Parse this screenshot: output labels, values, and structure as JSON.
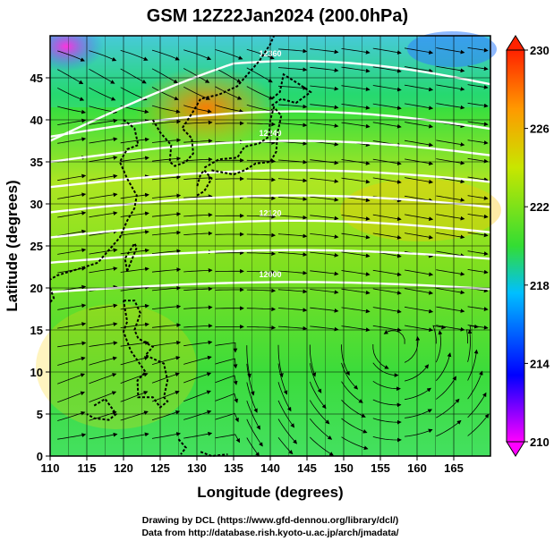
{
  "title": "GSM 12Z22Jan2024 (200.0hPa)",
  "x_axis": {
    "label": "Longitude (degrees)",
    "ticks": [
      "110",
      "115",
      "120",
      "125",
      "130",
      "135",
      "140",
      "145",
      "150",
      "155",
      "160",
      "165"
    ]
  },
  "y_axis": {
    "label": "Latitude  (degrees)",
    "ticks": [
      "0",
      "5",
      "10",
      "15",
      "20",
      "25",
      "30",
      "35",
      "40",
      "45"
    ]
  },
  "colorbar": {
    "ticks": [
      "210",
      "214",
      "218",
      "222",
      "226",
      "230"
    ],
    "colors": [
      "#ff00ff",
      "#0000ff",
      "#00bfff",
      "#33dd33",
      "#e6e600",
      "#ff8800",
      "#ff3300"
    ]
  },
  "contour_labels": [
    "12360",
    "12240",
    "12120",
    "12000"
  ],
  "footer": {
    "line1": "Drawing by DCL (https://www.gfd-dennou.org/library/dcl/)",
    "line2": "Data from http://database.rish.kyoto-u.ac.jp/arch/jmadata/"
  }
}
